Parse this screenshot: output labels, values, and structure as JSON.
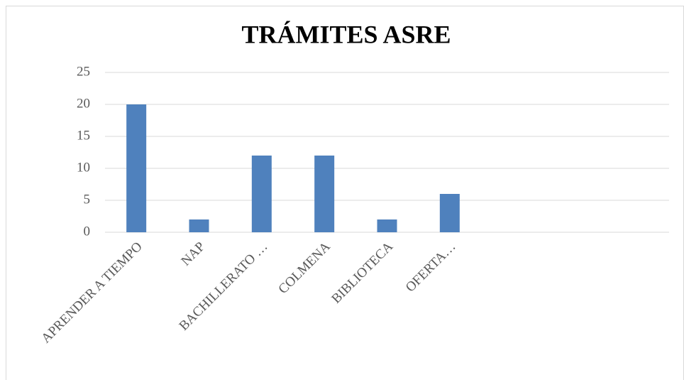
{
  "chart_data": {
    "type": "bar",
    "title": "TRÁMITES ASRE",
    "categories": [
      "APRENDER A TIEMPO",
      "NAP",
      "BACHILLERATO …",
      "COLMENA",
      "BIBLIOTECA",
      "OFERTA…",
      null,
      null,
      null
    ],
    "values": [
      20,
      2,
      12,
      12,
      2,
      6,
      null,
      null,
      null
    ],
    "color": "#4f81bd",
    "ylim": [
      0,
      25
    ],
    "yticks": [
      0,
      5,
      10,
      15,
      20,
      25
    ],
    "grid": true
  }
}
